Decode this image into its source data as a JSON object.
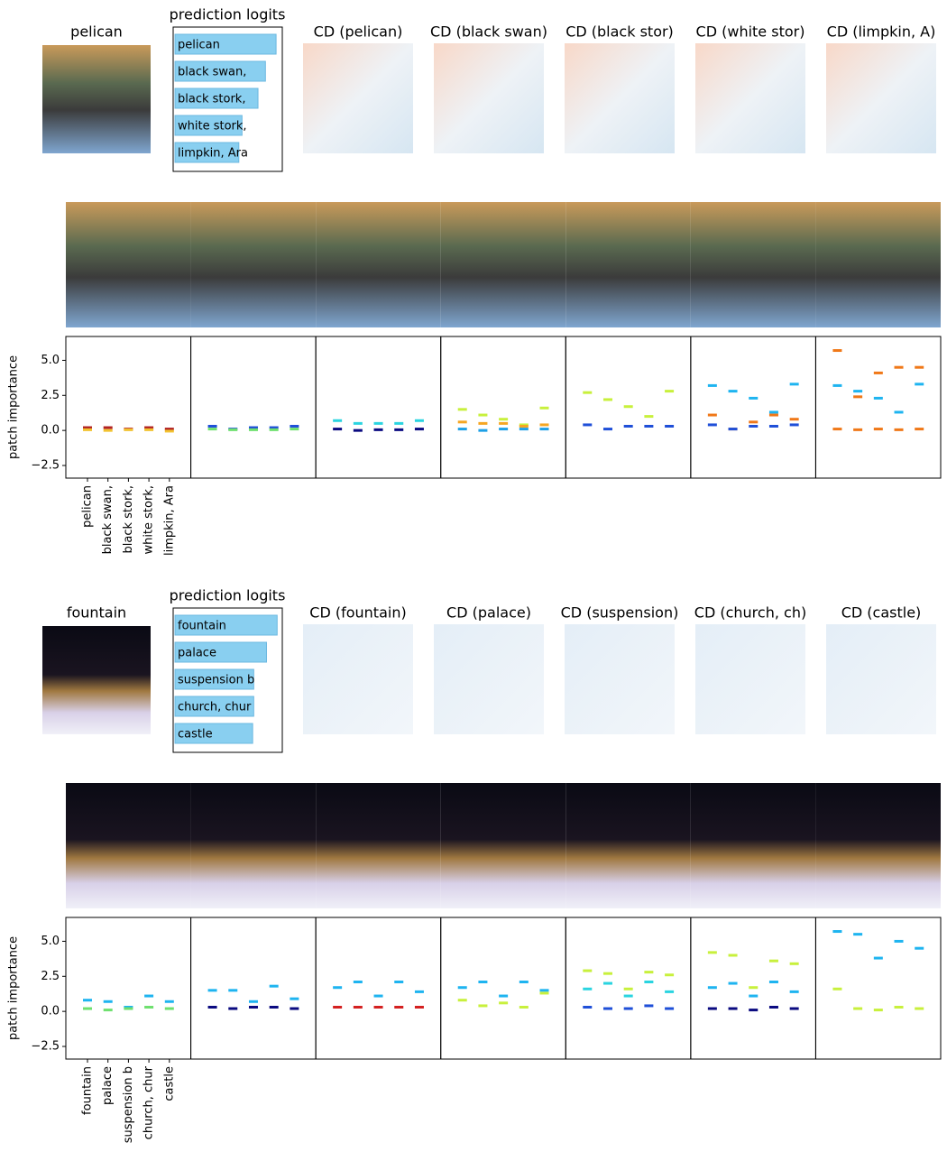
{
  "examples": [
    {
      "image_label": "pelican",
      "cd_titles": [
        "CD (pelican)",
        "CD (black swan)",
        "CD (black stor)",
        "CD (white stor)",
        "CD (limpkin, A)"
      ]
    },
    {
      "image_label": "fountain",
      "cd_titles": [
        "CD (fountain)",
        "CD (palace)",
        "CD (suspension)",
        "CD (church, ch)",
        "CD (castle)"
      ]
    }
  ],
  "chart_data": [
    {
      "type": "bar",
      "title": "prediction logits",
      "categories": [
        "pelican",
        "black swan,",
        "black stork,",
        "white stork,",
        "limpkin, Ara"
      ],
      "values": [
        0.95,
        0.85,
        0.78,
        0.63,
        0.6
      ],
      "color": "#89cff0",
      "xlim": [
        0,
        1
      ]
    },
    {
      "type": "scatter",
      "y_label": "patch importance",
      "categories": [
        "pelican",
        "black swan,",
        "black stork,",
        "white stork,",
        "limpkin, Ara"
      ],
      "ylim": [
        -3.4,
        6.7
      ],
      "yticks": [
        {
          "value": 5,
          "label": "5.0"
        },
        2.5,
        {
          "value": 0,
          "label": "0.0"
        },
        {
          "value": -2.5,
          "label": "−2.5"
        }
      ],
      "panels": [
        {
          "series": [
            {
              "color": "#b22222",
              "values": [
                0.2,
                0.2,
                0.1,
                0.2,
                0.1
              ]
            },
            {
              "color": "#f2c230",
              "values": [
                0.05,
                0,
                0.05,
                0.05,
                -0.05
              ]
            }
          ]
        },
        {
          "series": [
            {
              "color": "#1f4fd8",
              "values": [
                0.3,
                0.1,
                0.2,
                0.2,
                0.3
              ]
            },
            {
              "color": "#6fe06f",
              "values": [
                0.1,
                0.05,
                0.05,
                0.05,
                0.1
              ]
            }
          ]
        },
        {
          "series": [
            {
              "color": "#2ad4e0",
              "values": [
                0.7,
                0.5,
                0.5,
                0.5,
                0.7
              ]
            },
            {
              "color": "#0a0a80",
              "values": [
                0.1,
                0,
                0.05,
                0.05,
                0.1
              ]
            }
          ]
        },
        {
          "series": [
            {
              "color": "#c8f03c",
              "values": [
                1.5,
                1.1,
                0.8,
                0.4,
                1.6
              ]
            },
            {
              "color": "#f5a623",
              "values": [
                0.6,
                0.5,
                0.5,
                0.3,
                0.4
              ]
            },
            {
              "color": "#1ea0e6",
              "values": [
                0.1,
                0,
                0.1,
                0.1,
                0.1
              ]
            }
          ]
        },
        {
          "series": [
            {
              "color": "#c8f03c",
              "values": [
                2.7,
                2.2,
                1.7,
                1.0,
                2.8
              ]
            },
            {
              "color": "#1f4fd8",
              "values": [
                0.4,
                0.1,
                0.3,
                0.3,
                0.3
              ]
            }
          ]
        },
        {
          "series": [
            {
              "color": "#1eb4f0",
              "values": [
                3.2,
                2.8,
                2.3,
                1.3,
                3.3
              ]
            },
            {
              "color": "#f07818",
              "values": [
                1.1,
                0.1,
                0.6,
                1.1,
                0.8
              ]
            },
            {
              "color": "#1f4fd8",
              "values": [
                0.4,
                0.1,
                0.3,
                0.3,
                0.4
              ]
            }
          ]
        },
        {
          "series": [
            {
              "color": "#f07818",
              "values": [
                5.7,
                2.4,
                4.1,
                4.5,
                4.5
              ]
            },
            {
              "color": "#1eb4f0",
              "values": [
                3.2,
                2.8,
                2.3,
                1.3,
                3.3
              ]
            },
            {
              "color": "#f07818",
              "values": [
                0.1,
                0.05,
                0.1,
                0.05,
                0.1
              ]
            }
          ]
        }
      ]
    },
    {
      "type": "bar",
      "title": "prediction logits",
      "categories": [
        "fountain",
        "palace",
        "suspension b",
        "church, chur",
        "castle"
      ],
      "values": [
        0.96,
        0.86,
        0.74,
        0.74,
        0.73
      ],
      "color": "#89cff0",
      "xlim": [
        0,
        1
      ]
    },
    {
      "type": "scatter",
      "y_label": "patch importance",
      "categories": [
        "fountain",
        "palace",
        "suspension b",
        "church, chur",
        "castle"
      ],
      "ylim": [
        -3.4,
        6.7
      ],
      "yticks": [
        {
          "value": 5,
          "label": "5.0"
        },
        2.5,
        {
          "value": 0,
          "label": "0.0"
        },
        {
          "value": -2.5,
          "label": "−2.5"
        }
      ],
      "panels": [
        {
          "series": [
            {
              "color": "#1eb4f0",
              "values": [
                0.8,
                0.7,
                0.3,
                1.1,
                0.7
              ]
            },
            {
              "color": "#6fe06f",
              "values": [
                0.2,
                0.1,
                0.2,
                0.3,
                0.2
              ]
            }
          ]
        },
        {
          "series": [
            {
              "color": "#1eb4f0",
              "values": [
                1.5,
                1.5,
                0.7,
                1.8,
                0.9
              ]
            },
            {
              "color": "#0a0a80",
              "values": [
                0.3,
                0.2,
                0.3,
                0.3,
                0.2
              ]
            }
          ]
        },
        {
          "series": [
            {
              "color": "#1eb4f0",
              "values": [
                1.7,
                2.1,
                1.1,
                2.1,
                1.4
              ]
            },
            {
              "color": "#d42020",
              "values": [
                0.3,
                0.3,
                0.3,
                0.3,
                0.3
              ]
            }
          ]
        },
        {
          "series": [
            {
              "color": "#1eb4f0",
              "values": [
                1.7,
                2.1,
                1.1,
                2.1,
                1.5
              ]
            },
            {
              "color": "#c8f03c",
              "values": [
                0.8,
                0.4,
                0.6,
                0.3,
                1.3
              ]
            }
          ]
        },
        {
          "series": [
            {
              "color": "#c8f03c",
              "values": [
                2.9,
                2.7,
                1.6,
                2.8,
                2.6
              ]
            },
            {
              "color": "#2ad4e0",
              "values": [
                1.6,
                2.0,
                1.1,
                2.1,
                1.4
              ]
            },
            {
              "color": "#1f4fd8",
              "values": [
                0.3,
                0.2,
                0.2,
                0.4,
                0.2
              ]
            }
          ]
        },
        {
          "series": [
            {
              "color": "#c8f03c",
              "values": [
                4.2,
                4.0,
                1.7,
                3.6,
                3.4
              ]
            },
            {
              "color": "#1eb4f0",
              "values": [
                1.7,
                2.0,
                1.1,
                2.1,
                1.4
              ]
            },
            {
              "color": "#0a0a80",
              "values": [
                0.2,
                0.2,
                0.1,
                0.3,
                0.2
              ]
            }
          ]
        },
        {
          "series": [
            {
              "color": "#1eb4f0",
              "values": [
                5.7,
                5.5,
                3.8,
                5.0,
                4.5
              ]
            },
            {
              "color": "#c8f03c",
              "values": [
                1.6,
                0.2,
                0.1,
                0.3,
                0.2
              ]
            }
          ]
        }
      ]
    }
  ]
}
